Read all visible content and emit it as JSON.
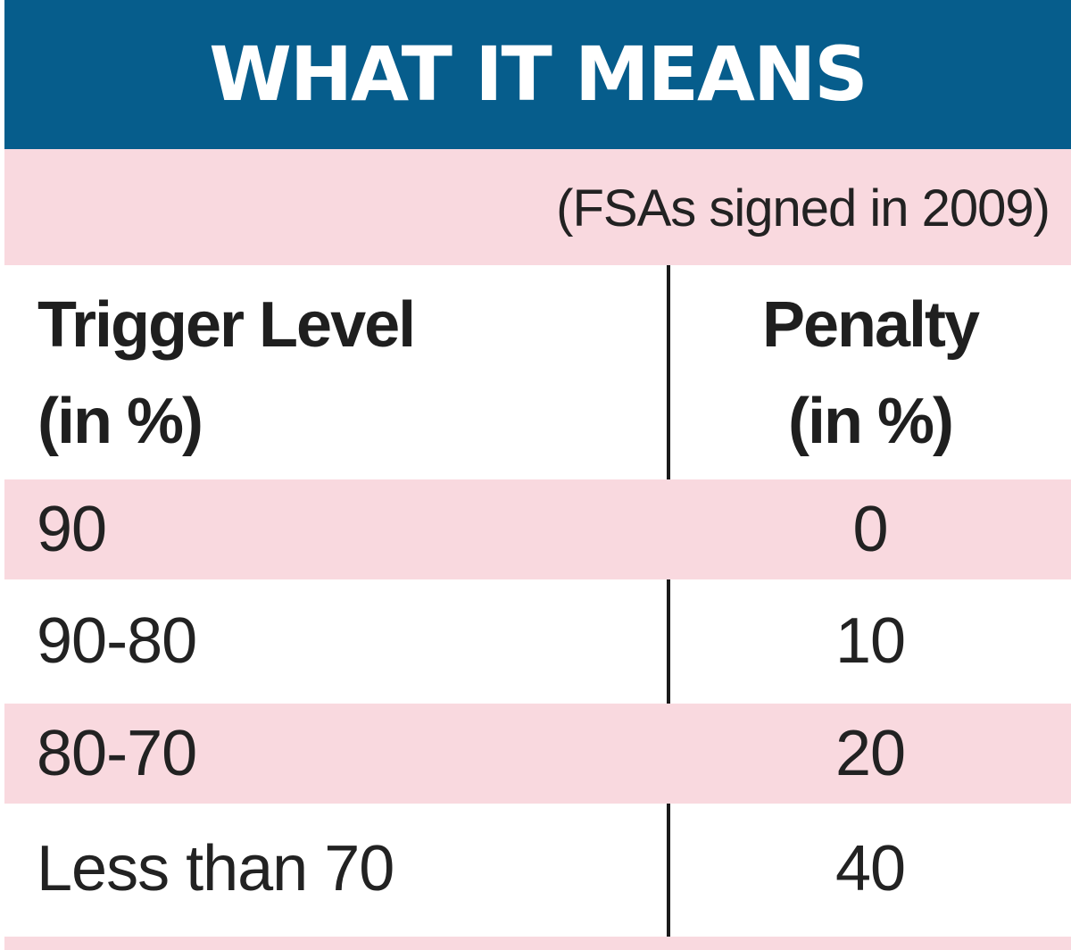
{
  "title": "WHAT IT MEANS",
  "subtitle": "(FSAs signed in 2009)",
  "table": {
    "headers": {
      "left": [
        "Trigger Level",
        "(in %)"
      ],
      "right": [
        "Penalty",
        "(in %)"
      ]
    },
    "rows": [
      {
        "trigger": "90",
        "penalty": "0"
      },
      {
        "trigger": "90-80",
        "penalty": "10"
      },
      {
        "trigger": "80-70",
        "penalty": "20"
      },
      {
        "trigger": "Less than 70",
        "penalty": "40"
      }
    ]
  },
  "colors": {
    "title_bg": "#065d8c",
    "title_text": "#ffffff",
    "pink_band": "#f9d9df",
    "text": "#222222"
  }
}
